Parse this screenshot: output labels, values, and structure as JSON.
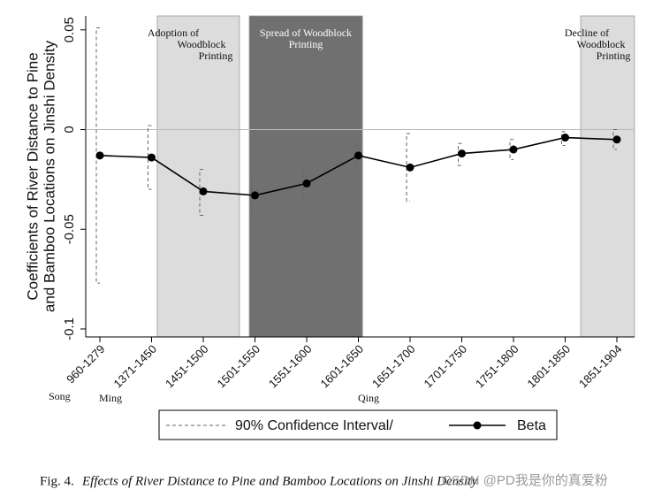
{
  "chart_data": {
    "type": "line_errorbar",
    "y_label_lines": [
      "Coefficients of River Distance to Pine",
      "and Bamboo Locations on Jinshi Density"
    ],
    "categories": [
      "960-1279",
      "1371-1450",
      "1451-1500",
      "1501-1550",
      "1551-1600",
      "1601-1650",
      "1651-1700",
      "1701-1750",
      "1751-1800",
      "1801-1850",
      "1851-1904"
    ],
    "series": [
      {
        "name": "Beta",
        "color": "#000000",
        "values": [
          -0.013,
          -0.014,
          -0.031,
          -0.033,
          -0.027,
          -0.013,
          -0.019,
          -0.012,
          -0.01,
          -0.004,
          -0.005
        ],
        "ci_low": [
          -0.077,
          -0.03,
          -0.043,
          -0.043,
          -0.036,
          -0.018,
          -0.036,
          -0.018,
          -0.015,
          -0.008,
          -0.01
        ],
        "ci_high": [
          0.051,
          0.002,
          -0.02,
          -0.022,
          -0.018,
          -0.008,
          -0.002,
          -0.007,
          -0.005,
          -0.001,
          0.0
        ]
      }
    ],
    "ci_name": "90% Confidence Interval/",
    "ci_color": "#666666",
    "ylim": [
      -0.104,
      0.057
    ],
    "yticks": [
      0.05,
      0,
      -0.05,
      -0.1
    ],
    "reference_line": 0,
    "regions": [
      {
        "label_lines": [
          "Adoption of",
          "Woodblock",
          "Printing"
        ],
        "color": "#dcdcdc"
      },
      {
        "label_lines": [
          "Spread of Woodblock",
          "Printing"
        ],
        "color": "#707070"
      },
      {
        "label_lines": [
          "Decline of",
          "Woodblock",
          "Printing"
        ],
        "color": "#dcdcdc"
      }
    ],
    "dynasties": [
      "Song",
      "Ming",
      "Qing"
    ],
    "caption_prefix": "Fig. 4.",
    "caption": "Effects of River Distance to Pine and Bamboo Locations on Jinshi Density",
    "watermark": "CSDN @PD我是你的真爱粉"
  }
}
